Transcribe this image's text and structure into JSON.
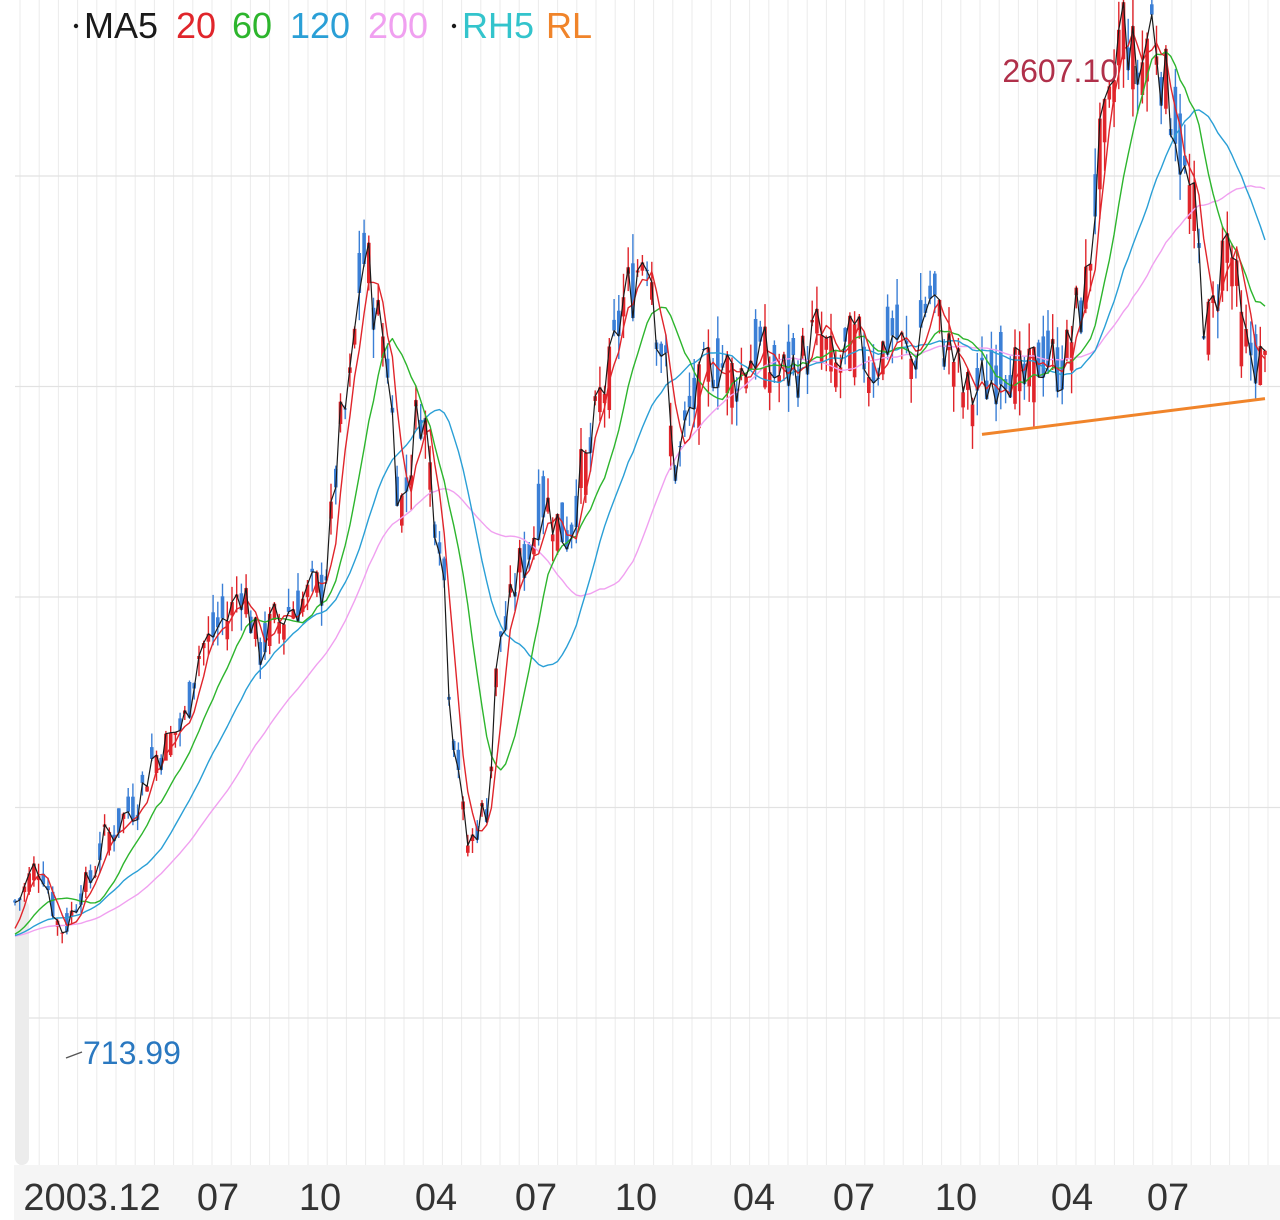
{
  "colors": {
    "ma5": "#1a1a1a",
    "ma20": "#e0252b",
    "ma60": "#2db52d",
    "ma120": "#2a9fd6",
    "ma200": "#f0a0f0",
    "rh5": "#33c4cc",
    "rl": "#f0842a",
    "candle_up": "#e0252b",
    "candle_down": "#3b7fd6",
    "grid": "#e6e6e6",
    "high_label": "#b0304a",
    "low_label": "#2a78c0"
  },
  "chart_data": {
    "type": "line",
    "title": "",
    "legend": {
      "placement": "top-left",
      "items": [
        {
          "key": "ma5",
          "label": "MA5",
          "dot": true
        },
        {
          "key": "ma20",
          "label": "20"
        },
        {
          "key": "ma60",
          "label": "60"
        },
        {
          "key": "ma120",
          "label": "120"
        },
        {
          "key": "ma200",
          "label": "200"
        },
        {
          "key": "rh5",
          "label": "RH5",
          "dot": true
        },
        {
          "key": "rl",
          "label": "RL"
        }
      ]
    },
    "x_tick_labels": [
      "2003.12",
      "07",
      "10",
      "04",
      "07",
      "10",
      "04",
      "07",
      "10",
      "04",
      "07"
    ],
    "ylim": [
      480,
      2680
    ],
    "y_gridlines": [
      600,
      1000,
      1400,
      1800,
      2200
    ],
    "annotations": {
      "high": {
        "label": "2607.10",
        "value": 2607.1
      },
      "low": {
        "label": "713.99",
        "value": 713.99
      }
    },
    "price_anchors": [
      [
        0,
        820
      ],
      [
        5,
        890
      ],
      [
        10,
        770
      ],
      [
        15,
        850
      ],
      [
        20,
        950
      ],
      [
        25,
        1000
      ],
      [
        30,
        1100
      ],
      [
        35,
        1150
      ],
      [
        40,
        1310
      ],
      [
        45,
        1360
      ],
      [
        48,
        1420
      ],
      [
        52,
        1300
      ],
      [
        55,
        1350
      ],
      [
        60,
        1390
      ],
      [
        65,
        1420
      ],
      [
        70,
        1750
      ],
      [
        74,
        2040
      ],
      [
        78,
        1900
      ],
      [
        82,
        1580
      ],
      [
        86,
        1760
      ],
      [
        90,
        1530
      ],
      [
        93,
        1140
      ],
      [
        96,
        930
      ],
      [
        100,
        1000
      ],
      [
        103,
        1330
      ],
      [
        108,
        1470
      ],
      [
        112,
        1580
      ],
      [
        117,
        1520
      ],
      [
        121,
        1650
      ],
      [
        125,
        1800
      ],
      [
        130,
        1980
      ],
      [
        134,
        2070
      ],
      [
        137,
        1880
      ],
      [
        140,
        1650
      ],
      [
        144,
        1770
      ],
      [
        148,
        1850
      ],
      [
        153,
        1820
      ],
      [
        157,
        1870
      ],
      [
        162,
        1820
      ],
      [
        166,
        1840
      ],
      [
        170,
        1900
      ],
      [
        174,
        1830
      ],
      [
        178,
        1880
      ],
      [
        182,
        1840
      ],
      [
        186,
        1900
      ],
      [
        190,
        1850
      ],
      [
        194,
        1970
      ],
      [
        198,
        1870
      ],
      [
        202,
        1780
      ],
      [
        206,
        1810
      ],
      [
        210,
        1850
      ],
      [
        214,
        1800
      ],
      [
        218,
        1860
      ],
      [
        222,
        1840
      ],
      [
        226,
        1950
      ],
      [
        231,
        2270
      ],
      [
        235,
        2490
      ],
      [
        238,
        2390
      ],
      [
        241,
        2490
      ],
      [
        245,
        2340
      ],
      [
        249,
        2160
      ],
      [
        253,
        1910
      ],
      [
        257,
        2080
      ],
      [
        261,
        1870
      ],
      [
        263,
        1860
      ],
      [
        265,
        1830
      ]
    ],
    "rl_line": {
      "start_value": 1709,
      "end_value": 1777
    }
  }
}
